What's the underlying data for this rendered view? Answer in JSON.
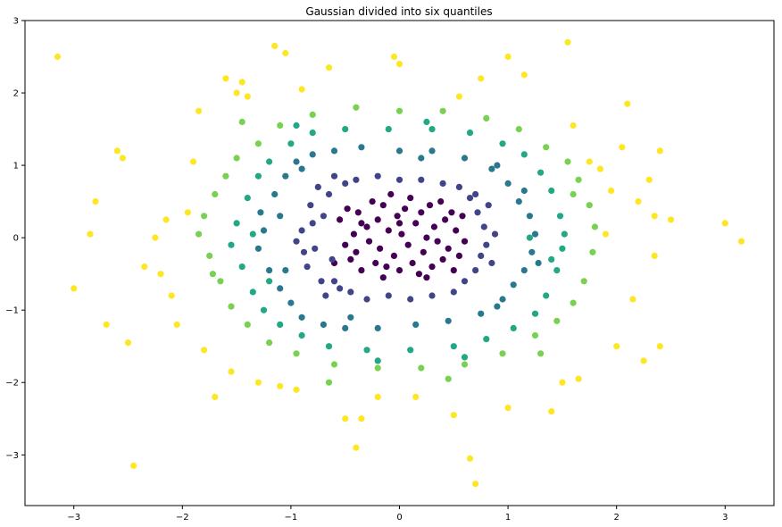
{
  "chart_data": {
    "type": "scatter",
    "title": "Gaussian divided into six quantiles",
    "xlabel": "",
    "ylabel": "",
    "xlim": [
      -3.45,
      3.45
    ],
    "ylim": [
      -3.7,
      3.0
    ],
    "xticks": [
      -3,
      -2,
      -1,
      0,
      1,
      2,
      3
    ],
    "yticks": [
      -3,
      -2,
      -1,
      0,
      1,
      2,
      3
    ],
    "xtick_labels": [
      "−3",
      "−2",
      "−1",
      "0",
      "1",
      "2",
      "3"
    ],
    "ytick_labels": [
      "−3",
      "−2",
      "−1",
      "0",
      "1",
      "2",
      "3"
    ],
    "grid": false,
    "colors": [
      "#440154",
      "#443983",
      "#31688e",
      "#21918c",
      "#35b779",
      "#90d743",
      "#fde725"
    ],
    "quantile_colors": [
      "#440154",
      "#414487",
      "#2a788e",
      "#22a884",
      "#7ad151",
      "#fde725"
    ],
    "series": [
      {
        "quantile": 1,
        "points": [
          [
            -0.55,
            0.25
          ],
          [
            -0.5,
            -0.1
          ],
          [
            -0.48,
            0.4
          ],
          [
            -0.45,
            -0.3
          ],
          [
            -0.42,
            0.05
          ],
          [
            -0.4,
            -0.2
          ],
          [
            -0.38,
            0.35
          ],
          [
            -0.35,
            -0.45
          ],
          [
            -0.3,
            0.15
          ],
          [
            -0.28,
            -0.05
          ],
          [
            -0.25,
            0.5
          ],
          [
            -0.22,
            -0.35
          ],
          [
            -0.2,
            0.25
          ],
          [
            -0.18,
            -0.15
          ],
          [
            -0.15,
            0.45
          ],
          [
            -0.12,
            -0.4
          ],
          [
            -0.1,
            0.1
          ],
          [
            -0.08,
            0.6
          ],
          [
            -0.05,
            -0.25
          ],
          [
            -0.02,
            0.3
          ],
          [
            0.0,
            -0.45
          ],
          [
            0.02,
            0.05
          ],
          [
            0.05,
            0.4
          ],
          [
            0.08,
            -0.1
          ],
          [
            0.1,
            0.55
          ],
          [
            0.12,
            -0.35
          ],
          [
            0.15,
            0.2
          ],
          [
            0.18,
            -0.5
          ],
          [
            0.2,
            0.35
          ],
          [
            0.22,
            -0.2
          ],
          [
            0.25,
            0.0
          ],
          [
            0.28,
            0.45
          ],
          [
            0.3,
            -0.4
          ],
          [
            0.32,
            0.15
          ],
          [
            0.35,
            -0.05
          ],
          [
            0.38,
            0.5
          ],
          [
            0.4,
            -0.3
          ],
          [
            0.42,
            0.25
          ],
          [
            0.45,
            -0.15
          ],
          [
            0.48,
            0.35
          ],
          [
            0.5,
            -0.45
          ],
          [
            0.52,
            0.1
          ],
          [
            0.55,
            -0.25
          ],
          [
            0.58,
            0.3
          ],
          [
            -0.6,
            -0.35
          ],
          [
            -0.35,
            0.2
          ],
          [
            0.0,
            0.2
          ],
          [
            0.25,
            -0.55
          ],
          [
            -0.15,
            -0.55
          ],
          [
            0.6,
            -0.05
          ]
        ]
      },
      {
        "quantile": 2,
        "points": [
          [
            -0.9,
            0.1
          ],
          [
            -0.85,
            -0.4
          ],
          [
            -0.82,
            0.45
          ],
          [
            -0.78,
            -0.15
          ],
          [
            -0.75,
            0.7
          ],
          [
            -0.72,
            -0.6
          ],
          [
            -0.7,
            0.3
          ],
          [
            -0.68,
            -0.8
          ],
          [
            -0.65,
            0.6
          ],
          [
            -0.62,
            -0.3
          ],
          [
            -0.6,
            0.85
          ],
          [
            -0.55,
            -0.7
          ],
          [
            -0.5,
            0.75
          ],
          [
            -0.45,
            -0.75
          ],
          [
            -0.4,
            0.8
          ],
          [
            -0.3,
            -0.85
          ],
          [
            -0.2,
            0.85
          ],
          [
            -0.1,
            -0.8
          ],
          [
            0.0,
            0.8
          ],
          [
            0.1,
            -0.85
          ],
          [
            0.2,
            0.8
          ],
          [
            0.3,
            -0.8
          ],
          [
            0.4,
            0.75
          ],
          [
            0.5,
            -0.75
          ],
          [
            0.55,
            0.7
          ],
          [
            0.6,
            -0.6
          ],
          [
            0.65,
            0.55
          ],
          [
            0.7,
            -0.45
          ],
          [
            0.72,
            0.35
          ],
          [
            0.75,
            -0.25
          ],
          [
            0.78,
            0.15
          ],
          [
            0.8,
            -0.1
          ],
          [
            0.82,
            0.45
          ],
          [
            0.85,
            -0.35
          ],
          [
            -0.88,
            -0.2
          ],
          [
            -0.8,
            0.2
          ],
          [
            0.88,
            0.05
          ],
          [
            -0.95,
            -0.05
          ],
          [
            0.7,
            0.6
          ],
          [
            -0.6,
            -0.6
          ]
        ]
      },
      {
        "quantile": 3,
        "points": [
          [
            -1.25,
            0.1
          ],
          [
            -1.2,
            -0.45
          ],
          [
            -1.15,
            0.6
          ],
          [
            -1.1,
            -0.7
          ],
          [
            -1.05,
            0.85
          ],
          [
            -1.0,
            -0.9
          ],
          [
            -0.95,
            1.05
          ],
          [
            -0.9,
            -1.1
          ],
          [
            -0.8,
            1.15
          ],
          [
            -0.7,
            -1.2
          ],
          [
            -0.6,
            1.2
          ],
          [
            -0.5,
            -1.25
          ],
          [
            -0.35,
            1.25
          ],
          [
            -0.2,
            -1.25
          ],
          [
            0.0,
            1.2
          ],
          [
            0.15,
            -1.2
          ],
          [
            0.3,
            1.2
          ],
          [
            0.45,
            -1.15
          ],
          [
            0.6,
            1.1
          ],
          [
            0.75,
            -1.05
          ],
          [
            0.85,
            0.95
          ],
          [
            0.95,
            -0.85
          ],
          [
            1.0,
            0.75
          ],
          [
            1.05,
            -0.65
          ],
          [
            1.1,
            0.5
          ],
          [
            1.15,
            -0.45
          ],
          [
            1.2,
            0.3
          ],
          [
            1.22,
            -0.2
          ],
          [
            1.25,
            0.05
          ],
          [
            -1.3,
            -0.15
          ],
          [
            -1.28,
            0.35
          ],
          [
            1.28,
            -0.35
          ],
          [
            0.9,
            1.0
          ],
          [
            -0.9,
            0.95
          ],
          [
            0.9,
            -0.95
          ],
          [
            -1.1,
            0.3
          ],
          [
            1.15,
            0.65
          ],
          [
            -0.45,
            -1.1
          ],
          [
            0.2,
            1.1
          ],
          [
            -1.05,
            -0.45
          ]
        ]
      },
      {
        "quantile": 4,
        "points": [
          [
            -1.5,
            0.2
          ],
          [
            -1.45,
            -0.4
          ],
          [
            -1.4,
            0.55
          ],
          [
            -1.35,
            -0.75
          ],
          [
            -1.3,
            0.85
          ],
          [
            -1.25,
            -1.0
          ],
          [
            -1.2,
            1.05
          ],
          [
            -1.1,
            -1.2
          ],
          [
            -1.0,
            1.3
          ],
          [
            -0.9,
            -1.35
          ],
          [
            -0.8,
            1.45
          ],
          [
            -0.65,
            -1.5
          ],
          [
            -0.5,
            1.5
          ],
          [
            -0.3,
            -1.55
          ],
          [
            -0.1,
            1.5
          ],
          [
            0.1,
            -1.55
          ],
          [
            0.3,
            1.5
          ],
          [
            0.5,
            -1.5
          ],
          [
            0.65,
            1.45
          ],
          [
            0.8,
            -1.4
          ],
          [
            0.95,
            1.3
          ],
          [
            1.05,
            -1.25
          ],
          [
            1.15,
            1.15
          ],
          [
            1.25,
            -1.05
          ],
          [
            1.3,
            0.9
          ],
          [
            1.35,
            -0.8
          ],
          [
            1.4,
            0.65
          ],
          [
            1.45,
            -0.45
          ],
          [
            1.48,
            0.3
          ],
          [
            1.5,
            -0.15
          ],
          [
            -1.55,
            -0.1
          ],
          [
            1.52,
            0.05
          ],
          [
            -1.35,
            0.05
          ],
          [
            1.4,
            -0.3
          ],
          [
            -0.95,
            1.55
          ],
          [
            0.25,
            1.6
          ],
          [
            -0.2,
            -1.7
          ],
          [
            0.6,
            -1.65
          ],
          [
            1.2,
            0.0
          ],
          [
            -1.2,
            -0.6
          ]
        ]
      },
      {
        "quantile": 5,
        "points": [
          [
            -1.8,
            0.3
          ],
          [
            -1.75,
            -0.25
          ],
          [
            -1.7,
            0.6
          ],
          [
            -1.65,
            -0.6
          ],
          [
            -1.6,
            0.85
          ],
          [
            -1.55,
            -0.95
          ],
          [
            -1.5,
            1.1
          ],
          [
            -1.4,
            -1.2
          ],
          [
            -1.3,
            1.3
          ],
          [
            -1.2,
            -1.45
          ],
          [
            -1.1,
            1.55
          ],
          [
            -0.95,
            -1.6
          ],
          [
            -0.8,
            1.7
          ],
          [
            -0.6,
            -1.75
          ],
          [
            -0.4,
            1.8
          ],
          [
            -0.2,
            -1.8
          ],
          [
            0.0,
            1.75
          ],
          [
            0.2,
            -1.8
          ],
          [
            0.4,
            1.75
          ],
          [
            0.6,
            -1.75
          ],
          [
            0.8,
            1.65
          ],
          [
            0.95,
            -1.6
          ],
          [
            1.1,
            1.5
          ],
          [
            1.25,
            -1.35
          ],
          [
            1.35,
            1.25
          ],
          [
            1.45,
            -1.15
          ],
          [
            1.55,
            1.05
          ],
          [
            1.6,
            -0.9
          ],
          [
            1.65,
            0.8
          ],
          [
            1.7,
            -0.6
          ],
          [
            1.75,
            0.45
          ],
          [
            1.78,
            -0.2
          ],
          [
            1.8,
            0.15
          ],
          [
            -1.85,
            0.05
          ],
          [
            -1.72,
            -0.5
          ],
          [
            1.6,
            0.6
          ],
          [
            -0.65,
            -2.0
          ],
          [
            0.45,
            -1.95
          ],
          [
            -1.45,
            1.6
          ],
          [
            1.3,
            -1.6
          ]
        ]
      },
      {
        "quantile": 6,
        "points": [
          [
            -3.15,
            2.5
          ],
          [
            -3.0,
            -0.7
          ],
          [
            -2.85,
            0.05
          ],
          [
            -2.8,
            0.5
          ],
          [
            -2.7,
            -1.2
          ],
          [
            -2.6,
            1.2
          ],
          [
            -2.55,
            1.1
          ],
          [
            -2.5,
            -1.45
          ],
          [
            -2.45,
            -3.15
          ],
          [
            -2.35,
            -0.4
          ],
          [
            -2.25,
            0.0
          ],
          [
            -2.2,
            -0.5
          ],
          [
            -2.15,
            0.25
          ],
          [
            -2.1,
            -0.8
          ],
          [
            -2.05,
            -1.2
          ],
          [
            -1.95,
            0.35
          ],
          [
            -1.85,
            1.75
          ],
          [
            -1.8,
            -1.55
          ],
          [
            -1.7,
            -2.2
          ],
          [
            -1.6,
            2.2
          ],
          [
            -1.55,
            -1.85
          ],
          [
            -1.5,
            2.0
          ],
          [
            -1.45,
            2.15
          ],
          [
            -1.4,
            1.95
          ],
          [
            -1.3,
            -2.0
          ],
          [
            -1.15,
            2.65
          ],
          [
            -1.1,
            -2.05
          ],
          [
            -1.05,
            2.55
          ],
          [
            -0.95,
            -2.1
          ],
          [
            -0.9,
            2.05
          ],
          [
            -0.65,
            2.35
          ],
          [
            -0.5,
            -2.5
          ],
          [
            -0.4,
            -2.9
          ],
          [
            -0.35,
            -2.5
          ],
          [
            -0.2,
            -2.2
          ],
          [
            -0.05,
            2.5
          ],
          [
            0.0,
            2.4
          ],
          [
            0.15,
            -2.2
          ],
          [
            0.5,
            -2.45
          ],
          [
            0.55,
            1.95
          ],
          [
            0.65,
            -3.05
          ],
          [
            0.7,
            -3.4
          ],
          [
            0.75,
            2.2
          ],
          [
            1.0,
            2.5
          ],
          [
            1.0,
            -2.35
          ],
          [
            1.15,
            2.25
          ],
          [
            1.4,
            -2.4
          ],
          [
            1.5,
            -2.0
          ],
          [
            1.55,
            2.7
          ],
          [
            1.6,
            1.55
          ],
          [
            1.65,
            -1.95
          ],
          [
            1.75,
            1.05
          ],
          [
            1.85,
            0.95
          ],
          [
            1.95,
            0.65
          ],
          [
            2.0,
            -1.5
          ],
          [
            2.05,
            1.25
          ],
          [
            2.1,
            1.85
          ],
          [
            2.15,
            -0.85
          ],
          [
            2.25,
            -1.7
          ],
          [
            2.3,
            0.8
          ],
          [
            2.35,
            0.3
          ],
          [
            2.4,
            1.2
          ],
          [
            2.4,
            -1.5
          ],
          [
            2.5,
            0.25
          ],
          [
            3.0,
            0.2
          ],
          [
            3.15,
            -0.05
          ],
          [
            2.2,
            0.5
          ],
          [
            1.9,
            0.05
          ],
          [
            -1.9,
            1.05
          ],
          [
            2.35,
            -0.25
          ]
        ]
      }
    ]
  }
}
